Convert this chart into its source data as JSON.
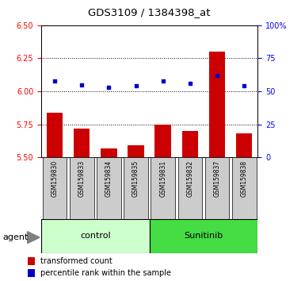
{
  "title": "GDS3109 / 1384398_at",
  "samples": [
    "GSM159830",
    "GSM159833",
    "GSM159834",
    "GSM159835",
    "GSM159831",
    "GSM159832",
    "GSM159837",
    "GSM159838"
  ],
  "bar_values": [
    5.84,
    5.72,
    5.57,
    5.59,
    5.75,
    5.7,
    6.3,
    5.68
  ],
  "bar_bottom": 5.5,
  "dot_values": [
    6.08,
    6.05,
    6.03,
    6.04,
    6.08,
    6.06,
    6.12,
    6.04
  ],
  "ylim": [
    5.5,
    6.5
  ],
  "yticks_left": [
    5.5,
    5.75,
    6.0,
    6.25,
    6.5
  ],
  "yticks_right": [
    0,
    25,
    50,
    75,
    100
  ],
  "yticks_right_labels": [
    "0",
    "25",
    "50",
    "75",
    "100%"
  ],
  "bar_color": "#cc0000",
  "dot_color": "#0000cc",
  "control_bg": "#ccffcc",
  "sunitinib_bg": "#44dd44",
  "sample_bg": "#cccccc",
  "bar_width": 0.6,
  "group_labels": [
    "control",
    "Sunitinib"
  ],
  "agent_label": "agent",
  "legend_bar_label": "transformed count",
  "legend_dot_label": "percentile rank within the sample"
}
